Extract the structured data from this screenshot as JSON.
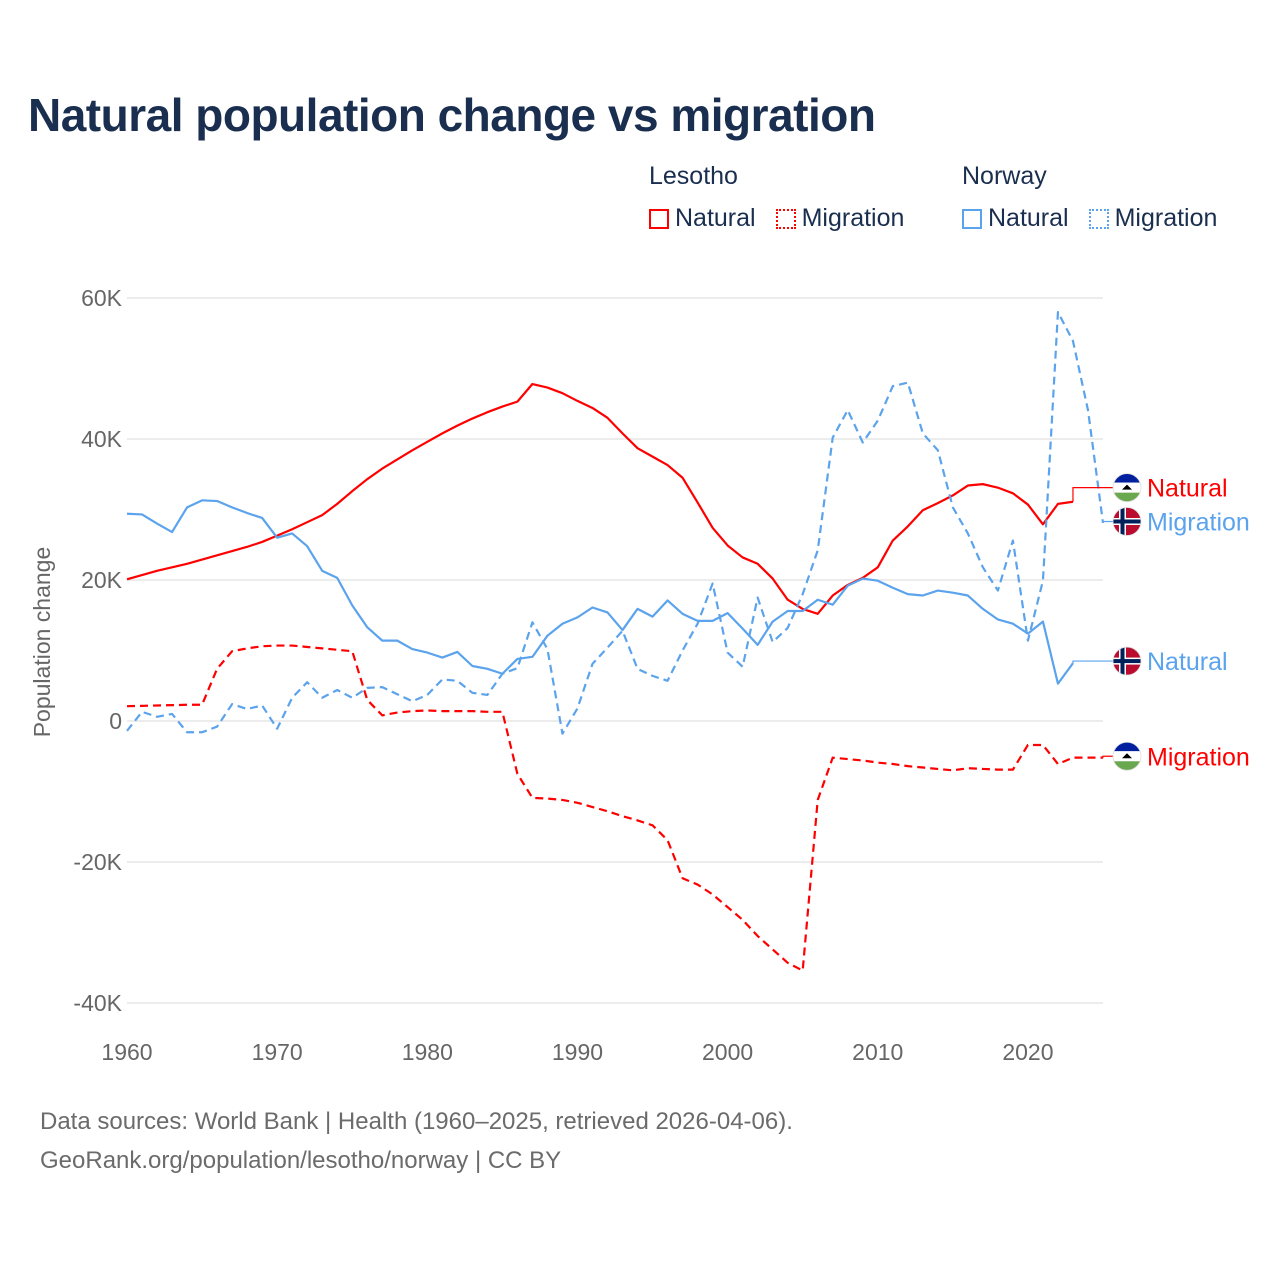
{
  "chart_data": {
    "type": "line",
    "title": "Natural population change vs migration",
    "ylabel": "Population change",
    "xlabel": "",
    "xlim": [
      1960,
      2025
    ],
    "ylim": [
      -40000,
      60000
    ],
    "x_ticks": [
      1960,
      1970,
      1980,
      1990,
      2000,
      2010,
      2020
    ],
    "x_tick_labels": [
      "1960",
      "1970",
      "1980",
      "1990",
      "2000",
      "2010",
      "2020"
    ],
    "y_ticks": [
      -40000,
      -20000,
      0,
      20000,
      40000,
      60000
    ],
    "y_tick_labels": [
      "-40K",
      "-20K",
      "0",
      "20K",
      "40K",
      "60K"
    ],
    "grid": true,
    "legend": {
      "placement": "top-right",
      "groups": [
        {
          "name": "Lesotho",
          "items": [
            "Natural",
            "Migration"
          ]
        },
        {
          "name": "Norway",
          "items": [
            "Natural",
            "Migration"
          ]
        }
      ]
    },
    "series": [
      {
        "name": "Lesotho Natural",
        "country": "Lesotho",
        "kind": "Natural",
        "color": "#ff0000",
        "dash": false,
        "start_year": 1960,
        "end_label": "Natural",
        "end_label_value": 33100,
        "values": [
          20100,
          20700,
          21300,
          21800,
          22300,
          22900,
          23500,
          24100,
          24700,
          25400,
          26300,
          27200,
          28200,
          29200,
          30800,
          32600,
          34300,
          35800,
          37100,
          38400,
          39600,
          40800,
          41900,
          42900,
          43800,
          44600,
          45300,
          47800,
          47300,
          46500,
          45400,
          44400,
          43000,
          40800,
          38700,
          37500,
          36300,
          34500,
          31000,
          27400,
          24900,
          23200,
          22300,
          20200,
          17200,
          15900,
          15200,
          17800,
          19300,
          20300,
          21800,
          25600,
          27600,
          29900,
          30900,
          32000,
          33400,
          33600,
          33100,
          32300,
          30700,
          27900,
          30800,
          31100
        ]
      },
      {
        "name": "Lesotho Migration",
        "country": "Lesotho",
        "kind": "Migration",
        "color": "#ff0000",
        "dash": true,
        "start_year": 1960,
        "end_label": "Migration",
        "end_label_value": -5000,
        "values": [
          2100,
          2150,
          2200,
          2250,
          2300,
          2300,
          7400,
          9900,
          10300,
          10600,
          10700,
          10700,
          10500,
          10300,
          10100,
          9900,
          3000,
          800,
          1200,
          1400,
          1500,
          1400,
          1400,
          1400,
          1300,
          1300,
          -7500,
          -10900,
          -11000,
          -11200,
          -11600,
          -12200,
          -12800,
          -13500,
          -14100,
          -14800,
          -16900,
          -22300,
          -23200,
          -24600,
          -26400,
          -28200,
          -30500,
          -32400,
          -34300,
          -35400,
          -11200,
          -5200,
          -5400,
          -5600,
          -5900,
          -6100,
          -6400,
          -6600,
          -6800,
          -7000,
          -6700,
          -6800,
          -6900,
          -6900,
          -3400,
          -3400,
          -6100,
          -5200,
          -5200,
          -5200
        ]
      },
      {
        "name": "Norway Natural",
        "country": "Norway",
        "kind": "Natural",
        "color": "#5ba3ec",
        "dash": false,
        "start_year": 1960,
        "end_label": "Natural",
        "end_label_value": 8500,
        "values": [
          29400,
          29300,
          28000,
          26800,
          30300,
          31300,
          31200,
          30300,
          29500,
          28800,
          26000,
          26600,
          24800,
          21300,
          20300,
          16400,
          13300,
          11400,
          11400,
          10200,
          9700,
          9000,
          9800,
          7800,
          7400,
          6700,
          8800,
          9100,
          12100,
          13800,
          14700,
          16100,
          15400,
          12900,
          15900,
          14800,
          17100,
          15200,
          14200,
          14200,
          15300,
          13100,
          10800,
          14100,
          15600,
          15600,
          17200,
          16500,
          19200,
          20200,
          19900,
          18900,
          18000,
          17800,
          18500,
          18200,
          17800,
          15900,
          14400,
          13800,
          12400,
          14100,
          5300,
          8200
        ]
      },
      {
        "name": "Norway Migration",
        "country": "Norway",
        "kind": "Migration",
        "color": "#5ba3ec",
        "dash": true,
        "start_year": 1960,
        "end_label": "Migration",
        "end_label_value": 28300,
        "values": [
          -1400,
          1300,
          600,
          1000,
          -1600,
          -1600,
          -800,
          2400,
          1700,
          2200,
          -1100,
          3300,
          5500,
          3300,
          4400,
          3300,
          4700,
          4800,
          3800,
          2800,
          3700,
          5900,
          5700,
          4000,
          3700,
          6700,
          7500,
          14000,
          10200,
          -1800,
          1800,
          8100,
          10400,
          12800,
          7400,
          6400,
          5700,
          10000,
          13800,
          19500,
          9700,
          7700,
          17500,
          11200,
          13200,
          18000,
          24200,
          40200,
          44100,
          39500,
          42600,
          47500,
          48000,
          40800,
          38400,
          30300,
          26600,
          21800,
          18500,
          25600,
          11400,
          19900,
          58000,
          53900,
          44100,
          28100
        ]
      }
    ]
  },
  "footer": {
    "line1": "Data sources: World Bank | Health (1960–2025, retrieved 2026-04-06).",
    "line2": "GeoRank.org/population/lesotho/norway | CC BY"
  }
}
